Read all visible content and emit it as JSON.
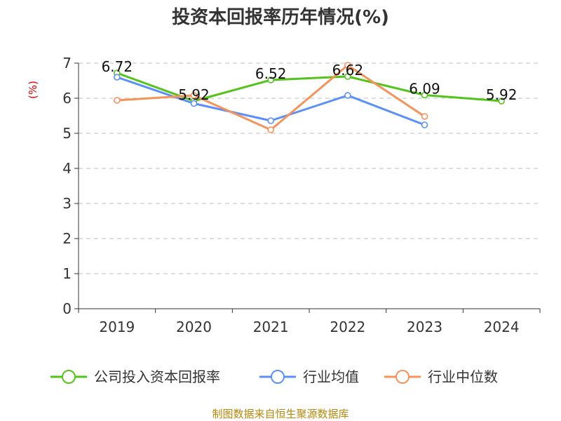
{
  "chart_data": {
    "type": "line",
    "title": "投资本回报率历年情况(%)",
    "ylabel": "(%)",
    "xlabel": "",
    "categories": [
      "2019",
      "2020",
      "2021",
      "2022",
      "2023",
      "2024"
    ],
    "ylim": [
      0,
      7
    ],
    "yticks": [
      0,
      1,
      2,
      3,
      4,
      5,
      6,
      7
    ],
    "grid": true,
    "legend_position": "bottom",
    "series": [
      {
        "name": "公司投入资本回报率",
        "color": "#52c41a",
        "values": [
          6.72,
          5.92,
          6.52,
          6.62,
          6.09,
          5.92
        ],
        "labels": [
          "6.72",
          "5.92",
          "6.52",
          "6.62",
          "6.09",
          "5.92"
        ]
      },
      {
        "name": "行业均值",
        "color": "#5b8ff9",
        "values": [
          6.6,
          5.85,
          5.36,
          6.08,
          5.24,
          null
        ],
        "labels": []
      },
      {
        "name": "行业中位数",
        "color": "#f6935a",
        "values": [
          5.94,
          6.08,
          5.1,
          6.94,
          5.48,
          null
        ],
        "labels": []
      }
    ]
  },
  "source": "制图数据来自恒生聚源数据库"
}
